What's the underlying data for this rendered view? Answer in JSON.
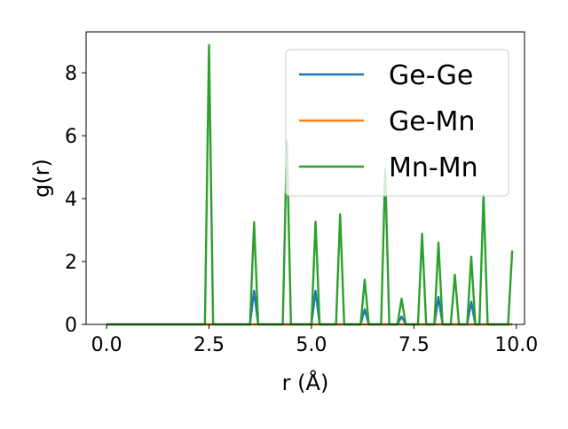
{
  "chart_data": {
    "type": "line",
    "xlabel": "r (Å)",
    "ylabel": "g(r)",
    "xlim": [
      -0.5,
      10.2
    ],
    "ylim": [
      0,
      9.3
    ],
    "grid": false,
    "legend_position": "top-right",
    "x_ticks": [
      0.0,
      2.5,
      5.0,
      7.5,
      10.0
    ],
    "x_tick_labels": [
      "0.0",
      "2.5",
      "5.0",
      "7.5",
      "10.0"
    ],
    "y_ticks": [
      0,
      2,
      4,
      6,
      8
    ],
    "y_tick_labels": [
      "0",
      "2",
      "4",
      "6",
      "8"
    ],
    "x": [
      0.0,
      2.3,
      2.4,
      2.5,
      2.6,
      3.5,
      3.6,
      3.7,
      4.3,
      4.4,
      4.5,
      5.0,
      5.1,
      5.2,
      5.6,
      5.7,
      5.8,
      6.2,
      6.3,
      6.4,
      6.7,
      6.8,
      6.9,
      7.1,
      7.2,
      7.3,
      7.6,
      7.7,
      7.8,
      8.0,
      8.1,
      8.2,
      8.4,
      8.5,
      8.6,
      8.8,
      8.9,
      9.0,
      9.1,
      9.2,
      9.3,
      9.8,
      9.9
    ],
    "series": [
      {
        "name": "Ge-Ge",
        "color": "#1f77b4",
        "values": [
          0,
          0,
          0,
          0,
          0,
          0,
          1.07,
          0,
          0,
          0,
          0,
          0,
          1.07,
          0,
          0,
          0,
          0,
          0,
          0.48,
          0,
          0,
          0,
          0,
          0,
          0.25,
          0,
          0,
          0,
          0,
          0,
          0.87,
          0,
          0,
          0,
          0,
          0,
          0.72,
          0,
          0,
          0,
          0,
          0,
          0
        ]
      },
      {
        "name": "Ge-Mn",
        "color": "#ff7f0e",
        "values": [
          0,
          0,
          0,
          0,
          0,
          0,
          0,
          0,
          0,
          0,
          0,
          0,
          0,
          0,
          0,
          0,
          0,
          0,
          0,
          0,
          0,
          0,
          0,
          0,
          0,
          0,
          0,
          0,
          0,
          0,
          0,
          0,
          0,
          0,
          0,
          0,
          0,
          0,
          0,
          0,
          0,
          0,
          0
        ]
      },
      {
        "name": "Mn-Mn",
        "color": "#2ca02c",
        "values": [
          0,
          0,
          0,
          8.88,
          0,
          0,
          3.25,
          0,
          0,
          5.85,
          0,
          0,
          3.27,
          0,
          0,
          3.5,
          0,
          0,
          1.42,
          0,
          0,
          4.93,
          0,
          0,
          0.82,
          0,
          0,
          2.88,
          0,
          0,
          2.6,
          0,
          0,
          1.58,
          0,
          0,
          2.15,
          0,
          0,
          4.12,
          0,
          0,
          2.35
        ]
      }
    ]
  }
}
